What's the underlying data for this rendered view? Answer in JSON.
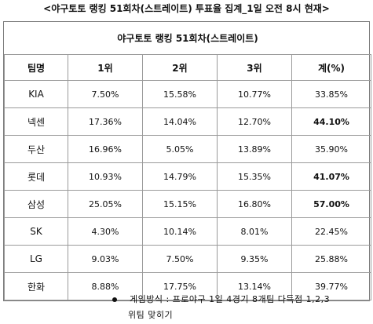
{
  "headline": "<야구토토 랭킹 51회차(스트레이트) 투표율 집계_1일 오전 8시 현재>",
  "table": {
    "caption": "야구토토 랭킹 51회차(스트레이트)",
    "headers": [
      "팀명",
      "1위",
      "2위",
      "3위",
      "계(%)"
    ],
    "rows": [
      {
        "team": "KIA",
        "r1": "7.50%",
        "r2": "15.58%",
        "r3": "10.77%",
        "total": "33.85%",
        "total_bold": false
      },
      {
        "team": "넥센",
        "r1": "17.36%",
        "r2": "14.04%",
        "r3": "12.70%",
        "total": "44.10%",
        "total_bold": true
      },
      {
        "team": "두산",
        "r1": "16.96%",
        "r2": "5.05%",
        "r3": "13.89%",
        "total": "35.90%",
        "total_bold": false
      },
      {
        "team": "롯데",
        "r1": "10.93%",
        "r2": "14.79%",
        "r3": "15.35%",
        "total": "41.07%",
        "total_bold": true
      },
      {
        "team": "삼성",
        "r1": "25.05%",
        "r2": "15.15%",
        "r3": "16.80%",
        "total": "57.00%",
        "total_bold": true
      },
      {
        "team": "SK",
        "r1": "4.30%",
        "r2": "10.14%",
        "r3": "8.01%",
        "total": "22.45%",
        "total_bold": false
      },
      {
        "team": "LG",
        "r1": "9.03%",
        "r2": "7.50%",
        "r3": "9.35%",
        "total": "25.88%",
        "total_bold": false
      },
      {
        "team": "한화",
        "r1": "8.88%",
        "r2": "17.75%",
        "r3": "13.14%",
        "total": "39.77%",
        "total_bold": false
      }
    ]
  },
  "note": {
    "line1": "게임방식 : 프로야구 1일 4경기 8개팀 다득점 1,2,3",
    "line2": "위팀 맞히기"
  }
}
